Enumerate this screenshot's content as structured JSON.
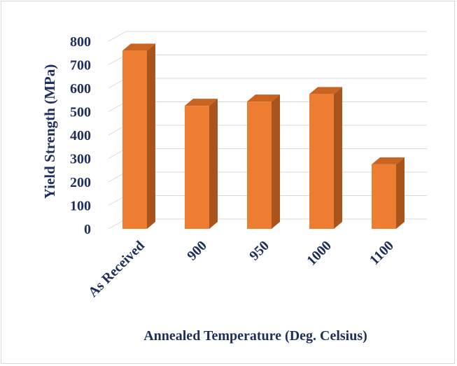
{
  "chart_data": {
    "type": "bar",
    "categories": [
      "As Received",
      "900",
      "950",
      "1000",
      "1100"
    ],
    "values": [
      760,
      525,
      543,
      575,
      275
    ],
    "title": "",
    "xlabel": "Annealed Temperature (Deg. Celsius)",
    "ylabel": "Yield Strength (MPa)",
    "ylim": [
      0,
      800
    ],
    "yticks": [
      0,
      100,
      200,
      300,
      400,
      500,
      600,
      700,
      800
    ],
    "grid": true,
    "legend": "none",
    "style": "3d-column",
    "colors": {
      "bar_front": "#ed7d31",
      "bar_side": "#a9541c",
      "bar_top": "#c8641f",
      "grid": "#d9d9d9",
      "text": "#1f2d5a"
    }
  }
}
